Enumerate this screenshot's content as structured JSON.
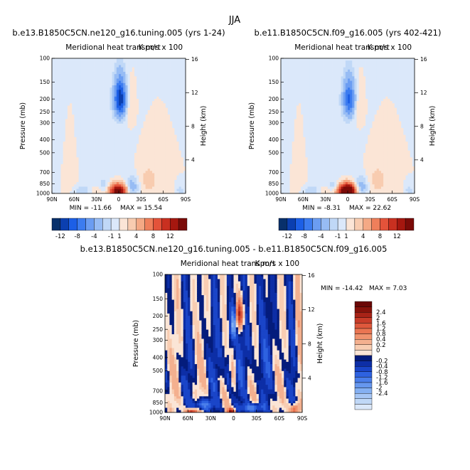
{
  "figure": {
    "title": "JJA",
    "subplot_title": "Meridional heat transport",
    "units_label": "K m/s x 100"
  },
  "chart_data": [
    {
      "type": "heatmap",
      "case": "b.e13.B1850C5CN.ne120_g16.tuning.005 (yrs 1-24)",
      "title": "Meridional heat transport",
      "units": "K m/s x 100",
      "xlabel": "",
      "ylabel": "Pressure (mb)",
      "ylabel_right": "Height (km)",
      "x_ticks": [
        "90N",
        "60N",
        "30N",
        "0",
        "30S",
        "60S",
        "90S"
      ],
      "y_ticks": [
        100,
        150,
        200,
        250,
        300,
        400,
        500,
        700,
        850,
        1000
      ],
      "y_ticks_right": [
        4,
        8,
        12,
        16
      ],
      "ylim": [
        1000,
        100
      ],
      "min_label": "MIN = -11.66",
      "max_label": "MAX = 15.54",
      "min": -11.66,
      "max": 15.54,
      "colorbar": {
        "orientation": "horizontal",
        "labels": [
          "-12",
          "-8",
          "-4",
          "-1",
          "1",
          "4",
          "8",
          "12"
        ]
      },
      "features": [
        {
          "lat": 0,
          "p": 200,
          "value": -11.66,
          "label": "upper-tropospheric negative core"
        },
        {
          "lat": 0,
          "p": 950,
          "value": 15.54,
          "label": "near-surface positive core"
        }
      ]
    },
    {
      "type": "heatmap",
      "case": "b.e11.B1850C5CN.f09_g16.005 (yrs 402-421)",
      "title": "Meridional heat transport",
      "units": "K m/s x 100",
      "xlabel": "",
      "ylabel": "Pressure (mb)",
      "ylabel_right": "Height (km)",
      "x_ticks": [
        "90N",
        "60N",
        "30N",
        "0",
        "30S",
        "60S",
        "90S"
      ],
      "y_ticks": [
        100,
        150,
        200,
        250,
        300,
        400,
        500,
        700,
        850,
        1000
      ],
      "y_ticks_right": [
        4,
        8,
        12,
        16
      ],
      "ylim": [
        1000,
        100
      ],
      "min_label": "MIN = -8.31",
      "max_label": "MAX = 22.62",
      "min": -8.31,
      "max": 22.62,
      "colorbar": {
        "orientation": "horizontal",
        "labels": [
          "-12",
          "-8",
          "-4",
          "-1",
          "1",
          "4",
          "8",
          "12"
        ]
      },
      "features": [
        {
          "lat": 0,
          "p": 200,
          "value": -8.31,
          "label": "upper-tropospheric negative core"
        },
        {
          "lat": 0,
          "p": 950,
          "value": 22.62,
          "label": "near-surface positive core"
        }
      ]
    },
    {
      "type": "heatmap",
      "case": "b.e13.B1850C5CN.ne120_g16.tuning.005 - b.e11.B1850C5CN.f09_g16.005",
      "title": "Meridional heat transport",
      "units": "K m/s x 100",
      "xlabel": "",
      "ylabel": "Pressure (mb)",
      "ylabel_right": "Height (km)",
      "x_ticks": [
        "90N",
        "60N",
        "30N",
        "0",
        "30S",
        "60S",
        "90S"
      ],
      "y_ticks": [
        100,
        150,
        200,
        250,
        300,
        400,
        500,
        700,
        850,
        1000
      ],
      "y_ticks_right": [
        4,
        8,
        12,
        16
      ],
      "ylim": [
        1000,
        100
      ],
      "min_label": "MIN = -14.42",
      "max_label": "MAX =   7.03",
      "min": -14.42,
      "max": 7.03,
      "colorbar": {
        "orientation": "vertical",
        "labels": [
          "2.4",
          "2",
          "1.6",
          "1.2",
          "0.8",
          "0.4",
          "0.2",
          "0",
          "-0.2",
          "-0.4",
          "-0.8",
          "-1.2",
          "-1.6",
          "-2",
          "-2.4"
        ]
      },
      "features": [
        {
          "lat": -8,
          "p": 200,
          "value": 2.4,
          "label": "upper-level positive difference"
        },
        {
          "lat": 0,
          "p": 230,
          "value": -2.0,
          "label": "upper-level negative difference"
        },
        {
          "lat": 0,
          "p": 980,
          "value": 2.4,
          "label": "surface positive difference"
        },
        {
          "lat": -80,
          "p": 950,
          "value": 2.4,
          "label": "high-latitude surface positive difference"
        }
      ]
    }
  ]
}
